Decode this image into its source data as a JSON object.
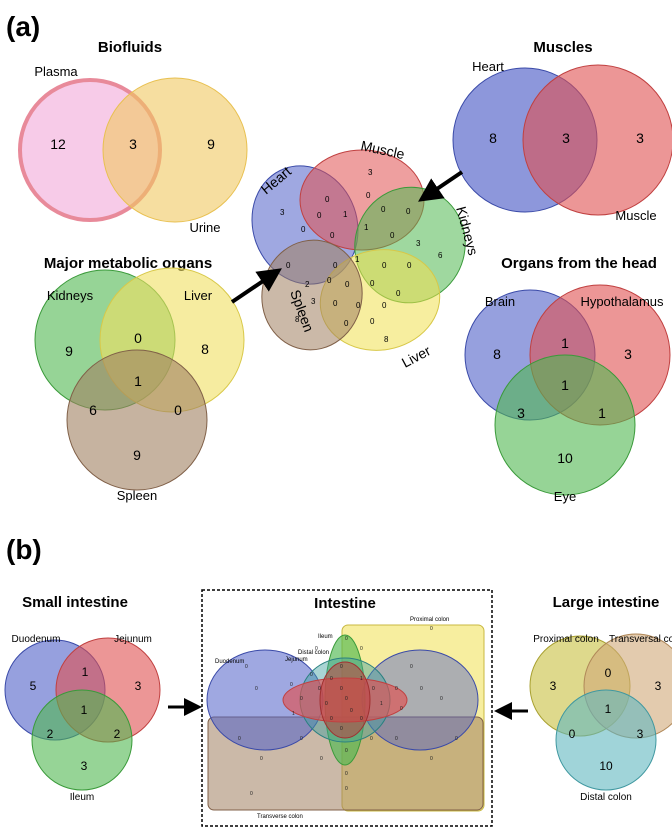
{
  "panel_a": {
    "label": "(a)",
    "biofluids": {
      "title": "Biofluids",
      "set1": "Plasma",
      "set2": "Urine",
      "only1": "12",
      "both": "3",
      "only2": "9"
    },
    "muscles": {
      "title": "Muscles",
      "set1": "Heart",
      "set2": "Muscle",
      "only1": "8",
      "both": "3",
      "only2": "3"
    },
    "metabolic": {
      "title": "Major metabolic organs",
      "set1": "Kidneys",
      "set2": "Liver",
      "set3": "Spleen",
      "k_only": "9",
      "l_only": "8",
      "s_only": "9",
      "kl": "0",
      "ks": "6",
      "ls": "0",
      "kls": "1"
    },
    "head": {
      "title": "Organs from the head",
      "set1": "Brain",
      "set2": "Hypothalamus",
      "set3": "Eye",
      "b_only": "8",
      "h_only": "3",
      "e_only": "10",
      "bh": "1",
      "be": "3",
      "he": "1",
      "bhe": "1"
    },
    "five_way": {
      "labels": [
        "Heart",
        "Muscle",
        "Kidneys",
        "Liver",
        "Spleen"
      ],
      "numbers": [
        "3",
        "3",
        "6",
        "8",
        "8",
        "0",
        "0",
        "1",
        "0",
        "0",
        "0",
        "0",
        "0",
        "1",
        "0",
        "3",
        "0",
        "0",
        "1",
        "0",
        "0",
        "2",
        "0",
        "0",
        "3",
        "0",
        "0",
        "0",
        "0",
        "0",
        "0",
        "0"
      ]
    }
  },
  "panel_b": {
    "label": "(b)",
    "small": {
      "title": "Small intestine",
      "set1": "Duodenum",
      "set2": "Jejunum",
      "set3": "Ileum",
      "d_only": "5",
      "j_only": "3",
      "i_only": "3",
      "dj": "1",
      "di": "2",
      "ji": "2",
      "dji": "1"
    },
    "intestine": {
      "title": "Intestine",
      "labels": [
        "Duodenum",
        "Jejunum",
        "Ileum",
        "Distal colon",
        "Proximal colon",
        "Transverse colon"
      ],
      "numbers": [
        "0",
        "0",
        "0",
        "0",
        "0",
        "1",
        "0",
        "0",
        "0",
        "0",
        "0",
        "0",
        "0",
        "0",
        "0",
        "0",
        "1",
        "0",
        "0",
        "1",
        "0",
        "0",
        "0",
        "0",
        "0",
        "0",
        "0",
        "0",
        "0",
        "0",
        "0",
        "0",
        "0",
        "0",
        "0",
        "0",
        "0",
        "0",
        "0",
        "0"
      ]
    },
    "large": {
      "title": "Large intestine",
      "set1": "Proximal colon",
      "set2": "Transversal colon",
      "set3": "Distal colon",
      "p_only": "3",
      "t_only": "3",
      "d_only": "10",
      "pt": "0",
      "pd": "0",
      "td": "3",
      "ptd": "1"
    }
  },
  "colors": {
    "pink": "#f2a8d8",
    "yellow": "#f0e06a",
    "blue": "#5060c8",
    "red": "#e05050",
    "green": "#50b850",
    "brown": "#a08060",
    "olive": "#c8c040",
    "teal": "#60b8c0"
  }
}
